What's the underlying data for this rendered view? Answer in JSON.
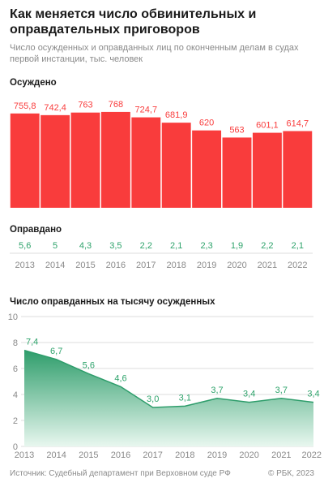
{
  "header": {
    "title": "Как меняется число обвинительных и оправдательных приговоров",
    "subtitle": "Число осужденных и оправданных лиц по оконченным делам в судах первой инстанции, тыс. человек"
  },
  "sections": {
    "convicted_label": "Осуждено",
    "acquitted_label": "Оправдано",
    "rate_label": "Число оправданных на тысячу осужденных"
  },
  "colors": {
    "bar": "#f93c3c",
    "acquitted_text": "#2ea36b",
    "area_top": "#2e9d6b",
    "area_bottom": "#e8f7ef",
    "grid": "#dddddd"
  },
  "chart_data": [
    {
      "type": "bar",
      "title": "Осуждено",
      "categories": [
        "2013",
        "2014",
        "2015",
        "2016",
        "2017",
        "2018",
        "2019",
        "2020",
        "2021",
        "2022"
      ],
      "values": [
        755.8,
        742.4,
        763,
        768,
        724.7,
        681.9,
        620,
        563,
        601.1,
        614.7
      ],
      "labels": [
        "755,8",
        "742,4",
        "763",
        "768",
        "724,7",
        "681,9",
        "620",
        "563",
        "601,1",
        "614,7"
      ],
      "ylim": [
        0,
        800
      ]
    },
    {
      "type": "table",
      "title": "Оправдано",
      "categories": [
        "2013",
        "2014",
        "2015",
        "2016",
        "2017",
        "2018",
        "2019",
        "2020",
        "2021",
        "2022"
      ],
      "values": [
        5.6,
        5,
        4.3,
        3.5,
        2.2,
        2.1,
        2.3,
        1.9,
        2.2,
        2.1
      ],
      "labels": [
        "5,6",
        "5",
        "4,3",
        "3,5",
        "2,2",
        "2,1",
        "2,3",
        "1,9",
        "2,2",
        "2,1"
      ]
    },
    {
      "type": "area",
      "title": "Число оправданных на тысячу осужденных",
      "x": [
        "2013",
        "2014",
        "2015",
        "2016",
        "2017",
        "2018",
        "2019",
        "2020",
        "2021",
        "2022"
      ],
      "values": [
        7.4,
        6.7,
        5.6,
        4.6,
        3.0,
        3.1,
        3.7,
        3.4,
        3.7,
        3.4
      ],
      "labels": [
        "7,4",
        "6,7",
        "5,6",
        "4,6",
        "3,0",
        "3,1",
        "3,7",
        "3,4",
        "3,7",
        "3,4"
      ],
      "ylim": [
        0,
        10
      ],
      "yticks": [
        "0",
        "2",
        "4",
        "6",
        "8",
        "10"
      ],
      "grid": true
    }
  ],
  "footer": {
    "source": "Источник: Судебный департамент при Верховном суде РФ",
    "copyright": "© РБК, 2023"
  }
}
